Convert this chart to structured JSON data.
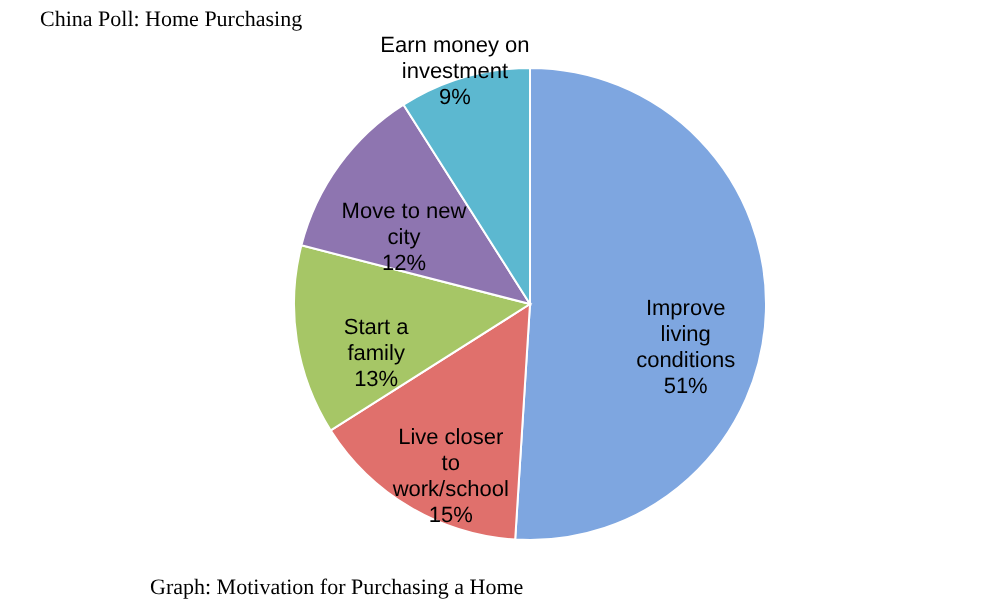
{
  "chart_data": {
    "type": "pie",
    "title": "China Poll: Home Purchasing",
    "categories": [
      "Improve living conditions",
      "Live closer to work/school",
      "Start a  family",
      "Move to new city",
      "Earn money on investment"
    ],
    "values": [
      51,
      15,
      13,
      12,
      9
    ],
    "colors": [
      "#7ea6e0",
      "#e0706c",
      "#a6c666",
      "#8e75b0",
      "#5cb8d0"
    ],
    "value_labels": [
      "51%",
      "15%",
      "13%",
      "12%",
      "9%"
    ],
    "annotations": [
      "Graph: Motivation for Purchasing a Home"
    ]
  }
}
